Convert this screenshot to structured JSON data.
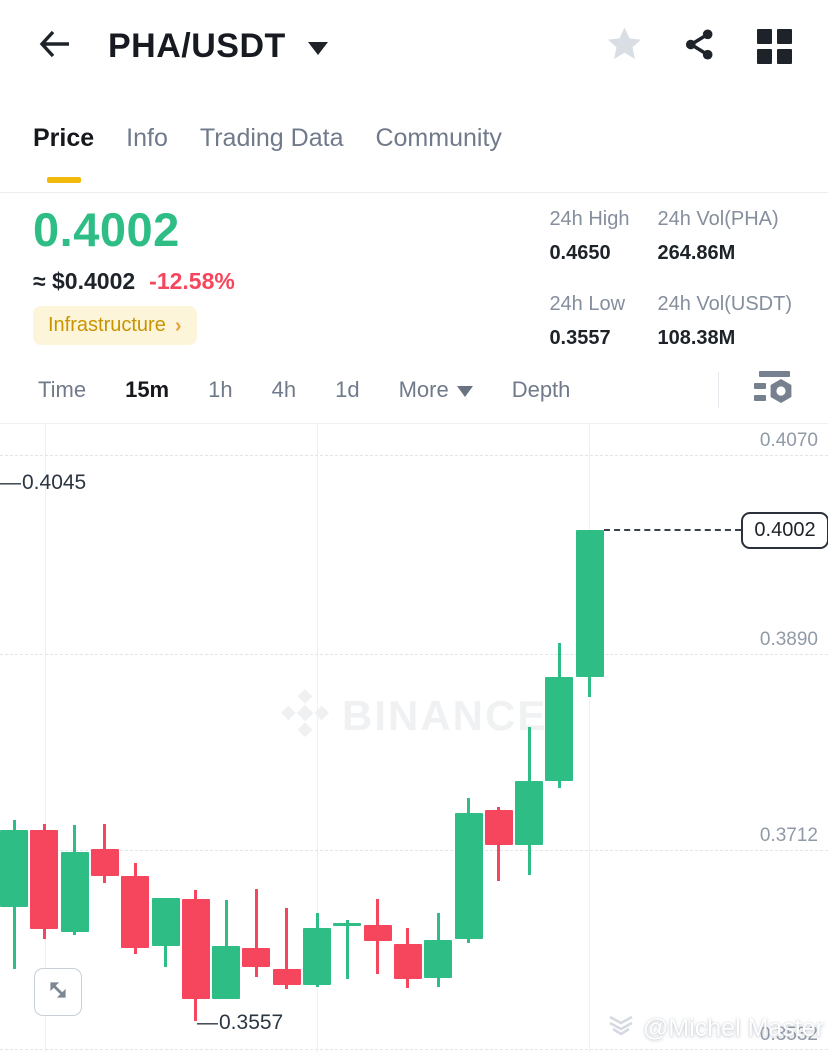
{
  "header": {
    "title": "PHA/USDT",
    "back_icon": "arrow-left",
    "favorite_icon": "star",
    "share_icon": "share-nodes",
    "layout_icon": "grid-2x2"
  },
  "tabs": [
    {
      "label": "Price",
      "active": true
    },
    {
      "label": "Info",
      "active": false
    },
    {
      "label": "Trading Data",
      "active": false
    },
    {
      "label": "Community",
      "active": false
    }
  ],
  "price_panel": {
    "last_price": "0.4002",
    "fiat_value": "≈ $0.4002",
    "change_pct": "-12.58%",
    "category_tag": "Infrastructure"
  },
  "stats": {
    "high_label": "24h High",
    "high_value": "0.4650",
    "vol_base_label": "24h Vol(PHA)",
    "vol_base_value": "264.86M",
    "low_label": "24h Low",
    "low_value": "0.3557",
    "vol_quote_label": "24h Vol(USDT)",
    "vol_quote_value": "108.38M"
  },
  "toolbar": {
    "items": [
      "Time",
      "15m",
      "1h",
      "4h",
      "1d",
      "More",
      "Depth"
    ],
    "active_item": "15m",
    "indicator_icon": "indicators-settings"
  },
  "chart_data": {
    "type": "candlestick",
    "pair": "PHA/USDT",
    "interval": "15m",
    "grid": true,
    "ylim": [
      0.3529,
      0.4098
    ],
    "y_ticks": [
      0.407,
      0.389,
      0.3712,
      0.3532
    ],
    "y_tick_labels": [
      "0.4070",
      "0.3890",
      "0.3712",
      "0.3532"
    ],
    "left_marker_price": "0.4045",
    "session_low_label": "0.3557",
    "last_price_label": "0.4002",
    "up_color": "#2ebd85",
    "down_color": "#f6465d",
    "candles_ohlc": [
      [
        0.3661,
        0.3739,
        0.3604,
        0.373
      ],
      [
        0.373,
        0.3736,
        0.3632,
        0.3641
      ],
      [
        0.3638,
        0.3735,
        0.3635,
        0.371
      ],
      [
        0.3713,
        0.3736,
        0.3682,
        0.3689
      ],
      [
        0.3689,
        0.37,
        0.3618,
        0.3623
      ],
      [
        0.3625,
        0.3669,
        0.3606,
        0.3669
      ],
      [
        0.3668,
        0.3676,
        0.3557,
        0.3577
      ],
      [
        0.3577,
        0.3667,
        0.3577,
        0.3625
      ],
      [
        0.3623,
        0.3677,
        0.3597,
        0.3606
      ],
      [
        0.3604,
        0.366,
        0.3586,
        0.359
      ],
      [
        0.359,
        0.3655,
        0.3588,
        0.3642
      ],
      [
        0.3643,
        0.3649,
        0.3595,
        0.3646
      ],
      [
        0.3644,
        0.3668,
        0.36,
        0.363
      ],
      [
        0.3627,
        0.3642,
        0.3587,
        0.3595
      ],
      [
        0.3596,
        0.3655,
        0.3588,
        0.3631
      ],
      [
        0.3632,
        0.3759,
        0.3628,
        0.3746
      ],
      [
        0.3748,
        0.3751,
        0.3684,
        0.3717
      ],
      [
        0.3717,
        0.3824,
        0.369,
        0.3775
      ],
      [
        0.3775,
        0.39,
        0.3768,
        0.3869
      ],
      [
        0.3869,
        0.4002,
        0.3851,
        0.4002
      ]
    ],
    "watermark": "BINANCE"
  },
  "credit_watermark": "@Michel Master"
}
